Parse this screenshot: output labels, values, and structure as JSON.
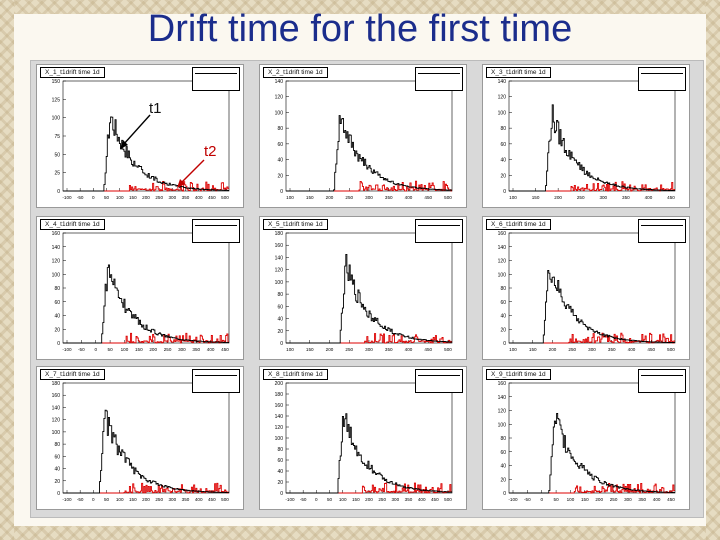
{
  "slide": {
    "title": "Drift time for the first time"
  },
  "annotations": {
    "t1": "t1",
    "t2": "t2"
  },
  "colors": {
    "title": "#1b2d8c",
    "primary_hist": "#000000",
    "secondary_hist": "#dd0000"
  },
  "pads": [
    {
      "title": "X_1_t1drift time 1d",
      "xticks": [
        "-100",
        "-50",
        "0",
        "50",
        "100",
        "150",
        "200",
        "250",
        "300",
        "350",
        "400",
        "450",
        "500"
      ],
      "yticks": [
        "0",
        "25",
        "50",
        "75",
        "100",
        "125",
        "150"
      ]
    },
    {
      "title": "X_2_t1drift time 1d",
      "xticks": [
        "100",
        "150",
        "200",
        "250",
        "300",
        "350",
        "400",
        "450",
        "500"
      ],
      "yticks": [
        "0",
        "20",
        "40",
        "60",
        "80",
        "100",
        "120",
        "140"
      ]
    },
    {
      "title": "X_3_t1drift time 1d",
      "xticks": [
        "100",
        "150",
        "200",
        "250",
        "300",
        "350",
        "400",
        "450"
      ],
      "yticks": [
        "0",
        "20",
        "40",
        "60",
        "80",
        "100",
        "120",
        "140"
      ]
    },
    {
      "title": "X_4_t1drift time 1d",
      "xticks": [
        "-100",
        "-50",
        "0",
        "50",
        "100",
        "150",
        "200",
        "250",
        "300",
        "350",
        "400",
        "450"
      ],
      "yticks": [
        "0",
        "20",
        "40",
        "60",
        "80",
        "100",
        "120",
        "140",
        "160"
      ]
    },
    {
      "title": "X_5_t1drift time 1d",
      "xticks": [
        "100",
        "150",
        "200",
        "250",
        "300",
        "350",
        "400",
        "450",
        "500"
      ],
      "yticks": [
        "0",
        "20",
        "40",
        "60",
        "80",
        "100",
        "120",
        "140",
        "160",
        "180"
      ]
    },
    {
      "title": "X_6_t1drift time 1d",
      "xticks": [
        "100",
        "150",
        "200",
        "250",
        "300",
        "350",
        "400",
        "450",
        "500"
      ],
      "yticks": [
        "0",
        "20",
        "40",
        "60",
        "80",
        "100",
        "120",
        "140",
        "160"
      ]
    },
    {
      "title": "X_7_t1drift time 1d",
      "xticks": [
        "-100",
        "-50",
        "0",
        "50",
        "100",
        "150",
        "200",
        "250",
        "300",
        "350",
        "400",
        "450",
        "500"
      ],
      "yticks": [
        "0",
        "20",
        "40",
        "60",
        "80",
        "100",
        "120",
        "140",
        "160",
        "180"
      ]
    },
    {
      "title": "X_8_t1drift time 1d",
      "xticks": [
        "-100",
        "-50",
        "0",
        "50",
        "100",
        "150",
        "200",
        "250",
        "300",
        "350",
        "400",
        "450",
        "500"
      ],
      "yticks": [
        "0",
        "20",
        "40",
        "60",
        "80",
        "100",
        "120",
        "140",
        "160",
        "180",
        "200"
      ]
    },
    {
      "title": "X_9_t1drift time 1d",
      "xticks": [
        "-100",
        "-50",
        "0",
        "50",
        "100",
        "150",
        "200",
        "250",
        "300",
        "350",
        "400",
        "450"
      ],
      "yticks": [
        "0",
        "20",
        "40",
        "60",
        "80",
        "100",
        "120",
        "140",
        "160"
      ]
    }
  ]
}
